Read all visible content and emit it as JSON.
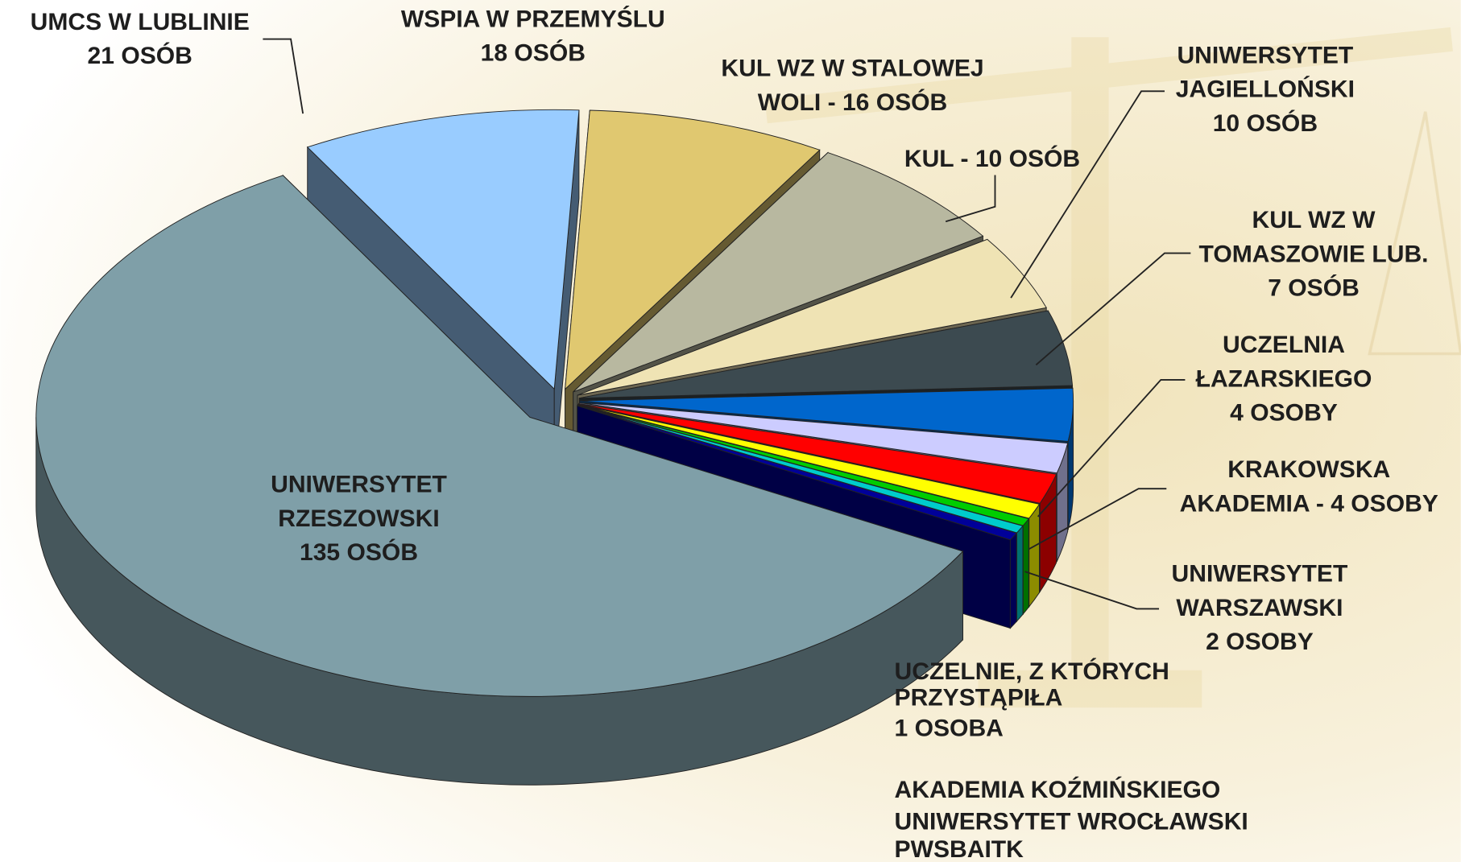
{
  "chart_data": {
    "type": "pie3d",
    "labels": [
      [
        "UNIWERSYTET",
        "RZESZOWSKI",
        "135 OSÓB"
      ],
      [
        "UMCS W LUBLINIE",
        "21 OSÓB"
      ],
      [
        "WSPIA W PRZEMYŚLU",
        "18 OSÓB"
      ],
      [
        "KUL WZ W STALOWEJ",
        "WOLI - 16 OSÓB"
      ],
      [
        "KUL - 10 OSÓB"
      ],
      [
        "UNIWERSYTET",
        "JAGIELLOŃSKI",
        "10 OSÓB"
      ],
      [
        "KUL WZ W",
        "TOMASZOWIE LUB.",
        "7 OSÓB"
      ],
      [
        "UCZELNIA",
        "ŁAZARSKIEGO",
        "4 OSOBY"
      ],
      [
        "KRAKOWSKA",
        "AKADEMIA - 4 OSOBY"
      ],
      [
        "UNIWERSYTET",
        "WARSZAWSKI",
        "2 OSOBY"
      ],
      [
        "AKADEMIA KOŹMIŃSKIEGO"
      ],
      [
        "UNIWERSYTET WROCŁAWSKI"
      ],
      [
        "PWSBAITK"
      ]
    ],
    "values": [
      135,
      21,
      18,
      16,
      10,
      10,
      7,
      4,
      4,
      2,
      1,
      1,
      1
    ],
    "colors": [
      "#7f9fa8",
      "#99ccff",
      "#e0c870",
      "#b8b8a0",
      "#efe3b4",
      "#3c4a50",
      "#0066cc",
      "#ccccff",
      "#ff0000",
      "#ffff00",
      "#00cc00",
      "#00cccc",
      "#000099"
    ],
    "annotation": [
      "UCZELNIE, Z KTÓRYCH",
      "PRZYSTĄPIŁA",
      "1 OSOBA"
    ]
  }
}
